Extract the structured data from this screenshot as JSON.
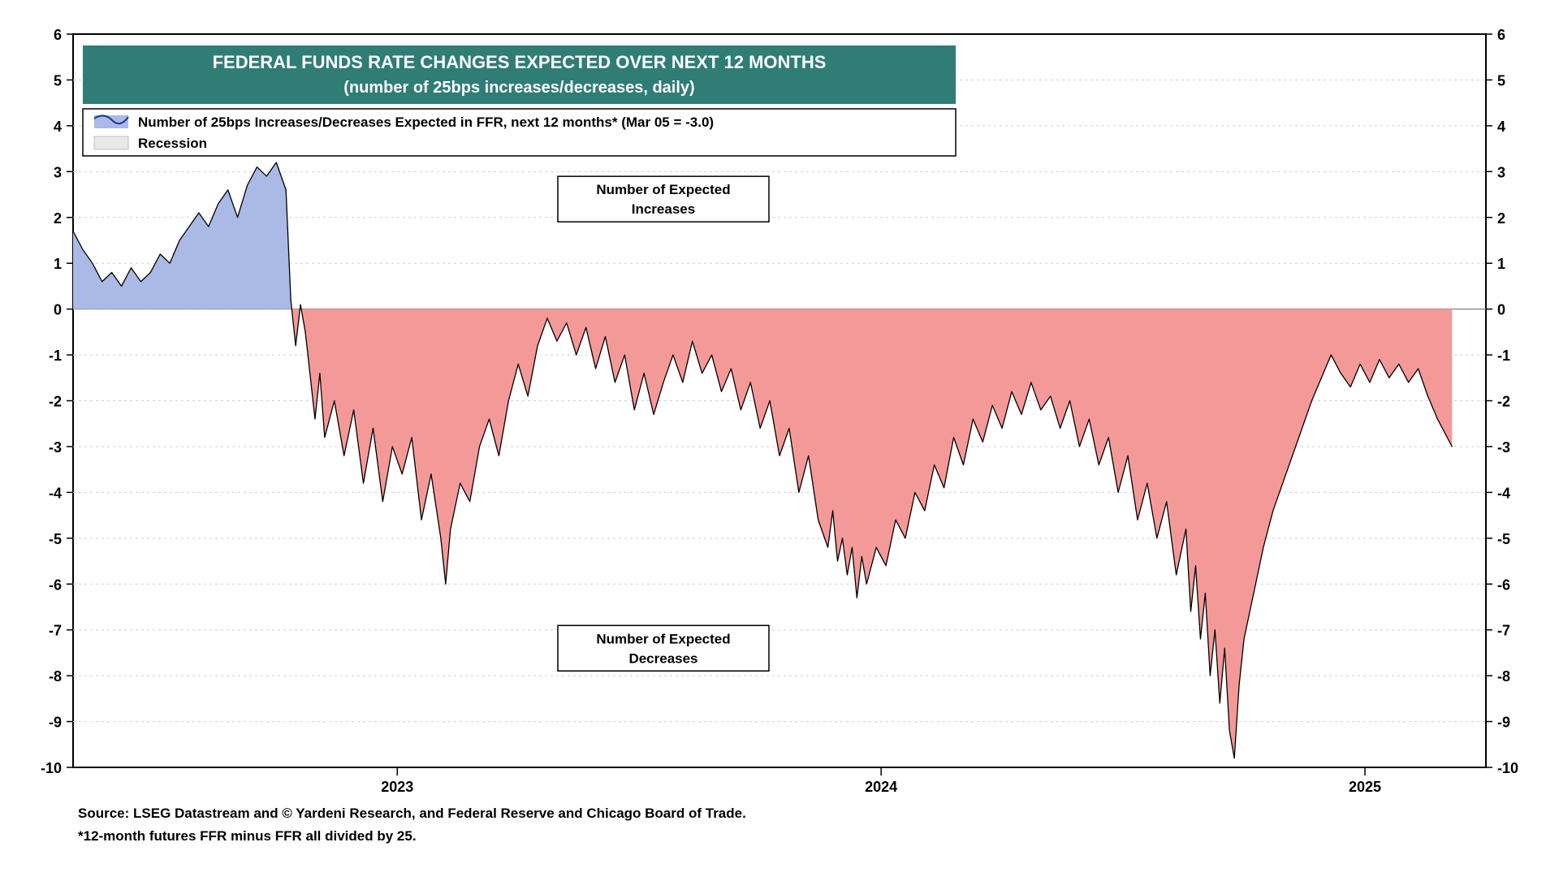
{
  "chart": {
    "type": "area-line",
    "title_line1": "FEDERAL FUNDS RATE CHANGES EXPECTED OVER NEXT 12 MONTHS",
    "title_line2": "(number of 25bps increases/decreases, daily)",
    "title_band_color": "#2f7d75",
    "title_text_color": "#ffffff",
    "title_fontsize_pt": 22,
    "subtitle_fontsize_pt": 20,
    "plot_background": "#ffffff",
    "plot_border_color": "#000000",
    "plot_border_width": 2,
    "grid_color": "#cfcfcf",
    "grid_dash": "3,4",
    "zero_line_color": "#808080",
    "zero_line_width": 1.2,
    "positive_fill": "#aab9e6",
    "negative_fill": "#f39a99",
    "line_color": "#000000",
    "line_width": 1.3,
    "axis_fontsize_pt": 18,
    "x_axis": {
      "domain_start": 2022.33,
      "domain_end": 2025.25,
      "tick_values": [
        2023,
        2024,
        2025
      ],
      "tick_labels": [
        "2023",
        "2024",
        "2025"
      ]
    },
    "y_axis": {
      "min": -10,
      "max": 6,
      "tick_step": 1,
      "ticks": [
        -10,
        -9,
        -8,
        -7,
        -6,
        -5,
        -4,
        -3,
        -2,
        -1,
        0,
        1,
        2,
        3,
        4,
        5,
        6
      ]
    },
    "legend": {
      "series_label": "Number of 25bps Increases/Decreases Expected in FFR, next 12 months* (Mar 05 = -3.0)",
      "recession_label": "Recession",
      "swatch_positive_fill": "#aab9e6",
      "swatch_line_color": "#1b3a8a",
      "swatch_recession_fill": "#e9e9e9",
      "font_size_pt": 17,
      "border_color": "#000000"
    },
    "annotations": {
      "increases_label_line1": "Number of Expected",
      "increases_label_line2": "Increases",
      "decreases_label_line1": "Number of Expected",
      "decreases_label_line2": "Decreases",
      "annot_fontsize_pt": 17
    },
    "footer": {
      "line1": "Source: LSEG Datastream and © Yardeni Research, and Federal Reserve and Chicago Board of Trade.",
      "line2": "*12-month futures FFR minus FFR all divided by 25.",
      "font_size_pt": 17
    },
    "series": [
      [
        2022.33,
        1.7
      ],
      [
        2022.35,
        1.3
      ],
      [
        2022.37,
        1.0
      ],
      [
        2022.39,
        0.6
      ],
      [
        2022.41,
        0.8
      ],
      [
        2022.43,
        0.5
      ],
      [
        2022.45,
        0.9
      ],
      [
        2022.47,
        0.6
      ],
      [
        2022.49,
        0.8
      ],
      [
        2022.51,
        1.2
      ],
      [
        2022.53,
        1.0
      ],
      [
        2022.55,
        1.5
      ],
      [
        2022.57,
        1.8
      ],
      [
        2022.59,
        2.1
      ],
      [
        2022.61,
        1.8
      ],
      [
        2022.63,
        2.3
      ],
      [
        2022.65,
        2.6
      ],
      [
        2022.67,
        2.0
      ],
      [
        2022.69,
        2.7
      ],
      [
        2022.71,
        3.1
      ],
      [
        2022.73,
        2.9
      ],
      [
        2022.75,
        3.2
      ],
      [
        2022.77,
        2.6
      ],
      [
        2022.78,
        0.2
      ],
      [
        2022.79,
        -0.8
      ],
      [
        2022.8,
        0.1
      ],
      [
        2022.81,
        -0.5
      ],
      [
        2022.83,
        -2.4
      ],
      [
        2022.84,
        -1.4
      ],
      [
        2022.85,
        -2.8
      ],
      [
        2022.87,
        -2.0
      ],
      [
        2022.89,
        -3.2
      ],
      [
        2022.91,
        -2.2
      ],
      [
        2022.93,
        -3.8
      ],
      [
        2022.95,
        -2.6
      ],
      [
        2022.97,
        -4.2
      ],
      [
        2022.99,
        -3.0
      ],
      [
        2023.01,
        -3.6
      ],
      [
        2023.03,
        -2.8
      ],
      [
        2023.05,
        -4.6
      ],
      [
        2023.07,
        -3.6
      ],
      [
        2023.09,
        -5.0
      ],
      [
        2023.1,
        -6.0
      ],
      [
        2023.11,
        -4.8
      ],
      [
        2023.13,
        -3.8
      ],
      [
        2023.15,
        -4.2
      ],
      [
        2023.17,
        -3.0
      ],
      [
        2023.19,
        -2.4
      ],
      [
        2023.21,
        -3.2
      ],
      [
        2023.23,
        -2.0
      ],
      [
        2023.25,
        -1.2
      ],
      [
        2023.27,
        -1.9
      ],
      [
        2023.29,
        -0.8
      ],
      [
        2023.31,
        -0.2
      ],
      [
        2023.33,
        -0.7
      ],
      [
        2023.35,
        -0.3
      ],
      [
        2023.37,
        -1.0
      ],
      [
        2023.39,
        -0.4
      ],
      [
        2023.41,
        -1.3
      ],
      [
        2023.43,
        -0.6
      ],
      [
        2023.45,
        -1.6
      ],
      [
        2023.47,
        -1.0
      ],
      [
        2023.49,
        -2.2
      ],
      [
        2023.51,
        -1.4
      ],
      [
        2023.53,
        -2.3
      ],
      [
        2023.55,
        -1.6
      ],
      [
        2023.57,
        -1.0
      ],
      [
        2023.59,
        -1.6
      ],
      [
        2023.61,
        -0.7
      ],
      [
        2023.63,
        -1.4
      ],
      [
        2023.65,
        -1.0
      ],
      [
        2023.67,
        -1.8
      ],
      [
        2023.69,
        -1.3
      ],
      [
        2023.71,
        -2.2
      ],
      [
        2023.73,
        -1.6
      ],
      [
        2023.75,
        -2.6
      ],
      [
        2023.77,
        -2.0
      ],
      [
        2023.79,
        -3.2
      ],
      [
        2023.81,
        -2.6
      ],
      [
        2023.83,
        -4.0
      ],
      [
        2023.85,
        -3.2
      ],
      [
        2023.87,
        -4.6
      ],
      [
        2023.89,
        -5.2
      ],
      [
        2023.9,
        -4.4
      ],
      [
        2023.91,
        -5.5
      ],
      [
        2023.92,
        -5.0
      ],
      [
        2023.93,
        -5.8
      ],
      [
        2023.94,
        -5.2
      ],
      [
        2023.95,
        -6.3
      ],
      [
        2023.96,
        -5.4
      ],
      [
        2023.97,
        -6.0
      ],
      [
        2023.99,
        -5.2
      ],
      [
        2024.01,
        -5.6
      ],
      [
        2024.03,
        -4.6
      ],
      [
        2024.05,
        -5.0
      ],
      [
        2024.07,
        -4.0
      ],
      [
        2024.09,
        -4.4
      ],
      [
        2024.11,
        -3.4
      ],
      [
        2024.13,
        -3.9
      ],
      [
        2024.15,
        -2.8
      ],
      [
        2024.17,
        -3.4
      ],
      [
        2024.19,
        -2.4
      ],
      [
        2024.21,
        -2.9
      ],
      [
        2024.23,
        -2.1
      ],
      [
        2024.25,
        -2.6
      ],
      [
        2024.27,
        -1.8
      ],
      [
        2024.29,
        -2.3
      ],
      [
        2024.31,
        -1.6
      ],
      [
        2024.33,
        -2.2
      ],
      [
        2024.35,
        -1.9
      ],
      [
        2024.37,
        -2.6
      ],
      [
        2024.39,
        -2.0
      ],
      [
        2024.41,
        -3.0
      ],
      [
        2024.43,
        -2.4
      ],
      [
        2024.45,
        -3.4
      ],
      [
        2024.47,
        -2.8
      ],
      [
        2024.49,
        -4.0
      ],
      [
        2024.51,
        -3.2
      ],
      [
        2024.53,
        -4.6
      ],
      [
        2024.55,
        -3.8
      ],
      [
        2024.57,
        -5.0
      ],
      [
        2024.59,
        -4.2
      ],
      [
        2024.61,
        -5.8
      ],
      [
        2024.63,
        -4.8
      ],
      [
        2024.64,
        -6.6
      ],
      [
        2024.65,
        -5.6
      ],
      [
        2024.66,
        -7.2
      ],
      [
        2024.67,
        -6.2
      ],
      [
        2024.68,
        -8.0
      ],
      [
        2024.69,
        -7.0
      ],
      [
        2024.7,
        -8.6
      ],
      [
        2024.71,
        -7.4
      ],
      [
        2024.72,
        -9.2
      ],
      [
        2024.73,
        -9.8
      ],
      [
        2024.74,
        -8.2
      ],
      [
        2024.75,
        -7.2
      ],
      [
        2024.77,
        -6.2
      ],
      [
        2024.79,
        -5.2
      ],
      [
        2024.81,
        -4.4
      ],
      [
        2024.83,
        -3.8
      ],
      [
        2024.85,
        -3.2
      ],
      [
        2024.87,
        -2.6
      ],
      [
        2024.89,
        -2.0
      ],
      [
        2024.91,
        -1.5
      ],
      [
        2024.93,
        -1.0
      ],
      [
        2024.95,
        -1.4
      ],
      [
        2024.97,
        -1.7
      ],
      [
        2024.99,
        -1.2
      ],
      [
        2025.01,
        -1.6
      ],
      [
        2025.03,
        -1.1
      ],
      [
        2025.05,
        -1.5
      ],
      [
        2025.07,
        -1.2
      ],
      [
        2025.09,
        -1.6
      ],
      [
        2025.11,
        -1.3
      ],
      [
        2025.13,
        -1.9
      ],
      [
        2025.15,
        -2.4
      ],
      [
        2025.17,
        -2.8
      ],
      [
        2025.18,
        -3.0
      ]
    ]
  }
}
